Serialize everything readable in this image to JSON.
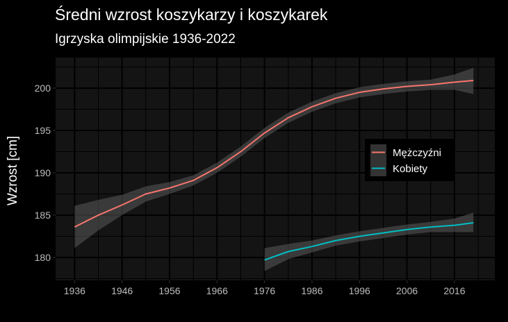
{
  "chart_data": {
    "type": "line",
    "title": "Średni wzrost koszykarzy i koszykarek",
    "subtitle": "Igrzyska olimpijskie 1936-2022",
    "xlabel": "",
    "ylabel": "Wzrost [cm]",
    "xlim": [
      1932,
      2024.5
    ],
    "ylim": [
      177.3,
      203.6
    ],
    "xticks": [
      1936,
      1946,
      1956,
      1966,
      1976,
      1986,
      1996,
      2006,
      2016
    ],
    "yticks": [
      180,
      185,
      190,
      195,
      200
    ],
    "grid": true,
    "legend_position": "right",
    "series": [
      {
        "name": "Mężczyźni",
        "color": "#F8766D",
        "x": [
          1936,
          1941,
          1946,
          1951,
          1956,
          1961,
          1966,
          1971,
          1976,
          1981,
          1986,
          1991,
          1996,
          2001,
          2006,
          2011,
          2016,
          2020
        ],
        "y": [
          183.6,
          185.0,
          186.2,
          187.5,
          188.2,
          189.1,
          190.6,
          192.5,
          194.7,
          196.5,
          197.8,
          198.8,
          199.5,
          199.9,
          200.2,
          200.4,
          200.7,
          200.9
        ],
        "ci_low": [
          181.1,
          183.2,
          185.0,
          186.6,
          187.5,
          188.5,
          190.0,
          191.9,
          194.1,
          195.9,
          197.2,
          198.2,
          198.9,
          199.3,
          199.6,
          199.8,
          199.8,
          199.3
        ],
        "ci_high": [
          186.1,
          186.8,
          187.4,
          188.4,
          188.9,
          189.7,
          191.2,
          193.1,
          195.3,
          197.1,
          198.4,
          199.4,
          200.1,
          200.5,
          200.8,
          201.0,
          201.6,
          202.4
        ]
      },
      {
        "name": "Kobiety",
        "color": "#00BFC4",
        "x": [
          1976,
          1981,
          1986,
          1991,
          1996,
          2001,
          2006,
          2011,
          2016,
          2020
        ],
        "y": [
          179.7,
          180.7,
          181.3,
          182.0,
          182.5,
          182.9,
          183.3,
          183.6,
          183.8,
          184.1
        ],
        "ci_low": [
          178.4,
          179.8,
          180.6,
          181.4,
          181.9,
          182.3,
          182.7,
          183.0,
          183.0,
          183.0
        ],
        "ci_high": [
          181.1,
          181.6,
          182.0,
          182.6,
          183.1,
          183.5,
          183.9,
          184.2,
          184.6,
          185.3
        ]
      }
    ]
  },
  "colors": {
    "panel": "#141414",
    "grid": "#000000",
    "ribbon": "#3a3a3a",
    "legend_bg": "#000000",
    "tick_text": "#bdbdbd"
  }
}
